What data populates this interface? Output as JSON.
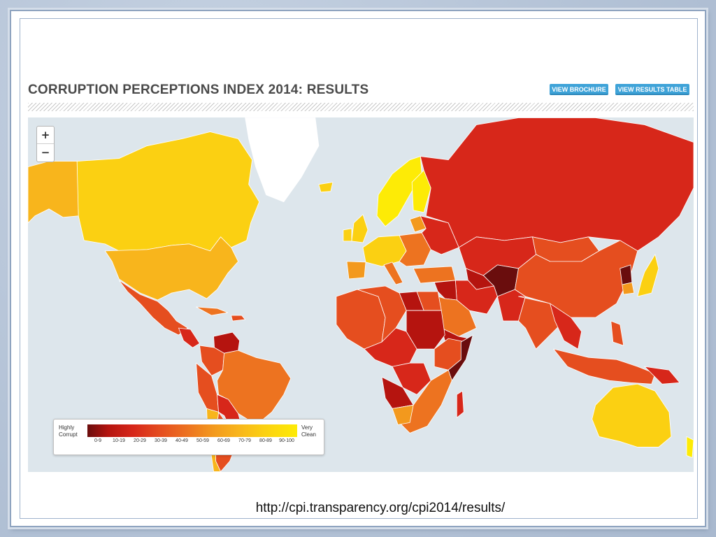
{
  "header": {
    "title": "CORRUPTION PERCEPTIONS INDEX 2014: RESULTS",
    "brochure_button": "VIEW BROCHURE",
    "table_button": "VIEW RESULTS TABLE"
  },
  "zoom": {
    "in_label": "+",
    "out_label": "−"
  },
  "legend": {
    "left_line1": "Highly",
    "left_line2": "Corrupt",
    "right_line1": "Very",
    "right_line2": "Clean",
    "ranges": [
      "0-9",
      "10-19",
      "20-29",
      "30-39",
      "40-49",
      "50-59",
      "60-69",
      "70-79",
      "80-89",
      "90-100"
    ]
  },
  "map": {
    "ocean_color": "#dde6ec",
    "ice_color": "#ffffff",
    "score_colors": [
      "#6a0d0d",
      "#b5140f",
      "#d7271a",
      "#e54e1f",
      "#ed7320",
      "#f3991d",
      "#f8b51c",
      "#fbd012",
      "#fdeb06",
      "#fef24a"
    ],
    "regions": [
      {
        "name": "Canada",
        "band": 7
      },
      {
        "name": "Alaska",
        "band": 6
      },
      {
        "name": "United States",
        "band": 6
      },
      {
        "name": "Mexico",
        "band": 3
      },
      {
        "name": "Central America",
        "band": 2
      },
      {
        "name": "Cuba",
        "band": 4
      },
      {
        "name": "Caribbean",
        "band": 3
      },
      {
        "name": "Venezuela",
        "band": 1
      },
      {
        "name": "Colombia",
        "band": 3
      },
      {
        "name": "Peru & Ecuador",
        "band": 3
      },
      {
        "name": "Brazil",
        "band": 4
      },
      {
        "name": "Bolivia & Paraguay",
        "band": 2
      },
      {
        "name": "Argentina",
        "band": 3
      },
      {
        "name": "Chile",
        "band": 6
      },
      {
        "name": "Greenland",
        "band": -1
      },
      {
        "name": "Iceland",
        "band": 7
      },
      {
        "name": "Scandinavia",
        "band": 8
      },
      {
        "name": "Finland",
        "band": 8
      },
      {
        "name": "United Kingdom",
        "band": 7
      },
      {
        "name": "Ireland",
        "band": 7
      },
      {
        "name": "France & Germany",
        "band": 7
      },
      {
        "name": "Spain & Portugal",
        "band": 5
      },
      {
        "name": "Italy",
        "band": 4
      },
      {
        "name": "Eastern Europe",
        "band": 4
      },
      {
        "name": "Baltics",
        "band": 5
      },
      {
        "name": "Ukraine & Belarus",
        "band": 2
      },
      {
        "name": "Turkey",
        "band": 4
      },
      {
        "name": "Russia",
        "band": 2
      },
      {
        "name": "Kazakhstan & Central Asia",
        "band": 2
      },
      {
        "name": "Turkmenistan",
        "band": 1
      },
      {
        "name": "Afghanistan",
        "band": 0
      },
      {
        "name": "Iran",
        "band": 2
      },
      {
        "name": "Iraq & Syria",
        "band": 1
      },
      {
        "name": "Saudi Arabia",
        "band": 4
      },
      {
        "name": "Yemen",
        "band": 1
      },
      {
        "name": "Pakistan",
        "band": 2
      },
      {
        "name": "India",
        "band": 3
      },
      {
        "name": "Mongolia",
        "band": 3
      },
      {
        "name": "China",
        "band": 3
      },
      {
        "name": "Southeast Asia",
        "band": 2
      },
      {
        "name": "North Korea",
        "band": 0
      },
      {
        "name": "South Korea",
        "band": 5
      },
      {
        "name": "Japan",
        "band": 7
      },
      {
        "name": "Indonesia & Malaysia",
        "band": 3
      },
      {
        "name": "Philippines",
        "band": 3
      },
      {
        "name": "Papua New Guinea",
        "band": 2
      },
      {
        "name": "Australia",
        "band": 7
      },
      {
        "name": "New Zealand",
        "band": 8
      },
      {
        "name": "Morocco & West Africa",
        "band": 3
      },
      {
        "name": "Algeria & Niger",
        "band": 3
      },
      {
        "name": "Libya",
        "band": 1
      },
      {
        "name": "Egypt",
        "band": 3
      },
      {
        "name": "Sudan & Chad",
        "band": 1
      },
      {
        "name": "Central Africa",
        "band": 2
      },
      {
        "name": "Ethiopia & Kenya",
        "band": 3
      },
      {
        "name": "Somalia",
        "band": 0
      },
      {
        "name": "DR Congo",
        "band": 2
      },
      {
        "name": "Angola",
        "band": 1
      },
      {
        "name": "Southern Africa",
        "band": 4
      },
      {
        "name": "Botswana & Namibia",
        "band": 5
      },
      {
        "name": "Madagascar",
        "band": 2
      }
    ]
  },
  "footer": {
    "url": "http://cpi.transparency.org/cpi2014/results/"
  }
}
